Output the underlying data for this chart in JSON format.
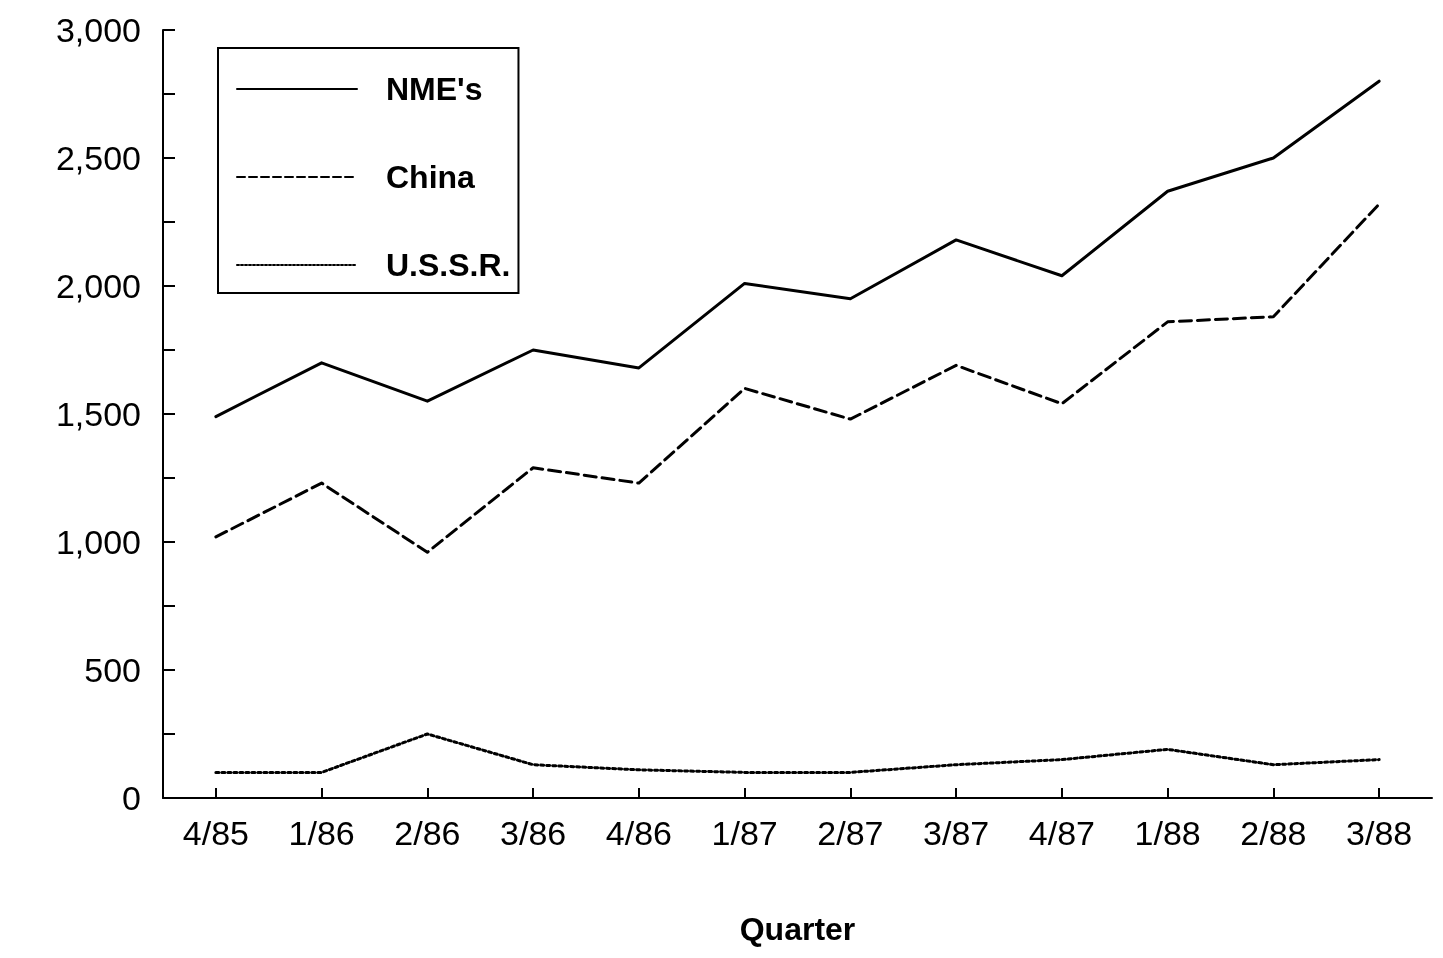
{
  "chart_data": {
    "type": "line",
    "xlabel": "Quarter",
    "categories": [
      "4/85",
      "1/86",
      "2/86",
      "3/86",
      "4/86",
      "1/87",
      "2/87",
      "3/87",
      "4/87",
      "1/88",
      "2/88",
      "3/88"
    ],
    "series": [
      {
        "name": "NME's",
        "color": "#000000",
        "line_style": "solid",
        "values": [
          1490,
          1700,
          1550,
          1750,
          1680,
          2010,
          1950,
          2180,
          2040,
          2370,
          2500,
          2800
        ]
      },
      {
        "name": "China",
        "color": "#000000",
        "line_style": "dashed",
        "values": [
          1020,
          1230,
          960,
          1290,
          1230,
          1600,
          1480,
          1690,
          1540,
          1860,
          1880,
          2320
        ]
      },
      {
        "name": "U.S.S.R.",
        "color": "#000000",
        "line_style": "dotted",
        "values": [
          100,
          100,
          250,
          130,
          110,
          100,
          100,
          130,
          150,
          190,
          130,
          150
        ]
      }
    ],
    "ylim": [
      0,
      3000
    ],
    "yticks": [
      {
        "value": 0,
        "label": "0"
      },
      {
        "value": 250,
        "label": null
      },
      {
        "value": 500,
        "label": "500"
      },
      {
        "value": 750,
        "label": null
      },
      {
        "value": 1000,
        "label": "1,000"
      },
      {
        "value": 1250,
        "label": null
      },
      {
        "value": 1500,
        "label": "1,500"
      },
      {
        "value": 1750,
        "label": null
      },
      {
        "value": 2000,
        "label": "2,000"
      },
      {
        "value": 2250,
        "label": null
      },
      {
        "value": 2500,
        "label": "2,500"
      },
      {
        "value": 2750,
        "label": null
      },
      {
        "value": 3000,
        "label": "3,000"
      }
    ],
    "grid": false,
    "legend": "top left",
    "marker": "none"
  }
}
